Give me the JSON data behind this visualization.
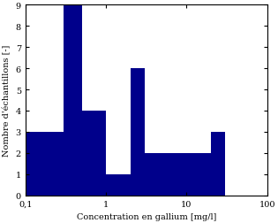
{
  "title": "",
  "xlabel": "Concentration en gallium [mg/l]",
  "ylabel": "Nombre d'échantillons [-]",
  "bar_color": "#00008B",
  "background_color": "#ffffff",
  "xlim": [
    0.1,
    100
  ],
  "ylim": [
    0,
    9
  ],
  "yticks": [
    0,
    1,
    2,
    3,
    4,
    5,
    6,
    7,
    8,
    9
  ],
  "xticks": [
    0.1,
    1,
    10,
    100
  ],
  "xtick_labels": [
    "0,1",
    "1",
    "10",
    "100"
  ],
  "bar_edges": [
    0.1,
    0.3,
    0.5,
    1.0,
    2.0,
    3.0,
    10.0,
    20.0,
    30.0,
    100.0
  ],
  "bar_heights": [
    3,
    9,
    4,
    1,
    6,
    2,
    2,
    3,
    0
  ]
}
